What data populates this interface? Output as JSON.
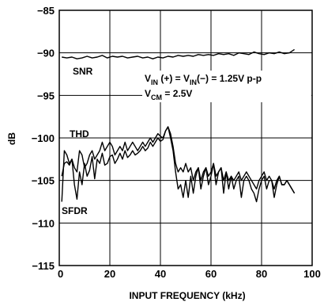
{
  "chart_data": {
    "type": "line",
    "xlabel": "INPUT FREQUENCY (kHz)",
    "ylabel": "dB",
    "xlim": [
      0,
      100
    ],
    "ylim": [
      -115,
      -85
    ],
    "xticks": [
      "0",
      "20",
      "40",
      "60",
      "80",
      "100"
    ],
    "yticks": [
      "−85",
      "−90",
      "−95",
      "−100",
      "−105",
      "−110",
      "−115"
    ],
    "grid": true,
    "legend": "none",
    "annotations": {
      "condition_vin": {
        "main": "V",
        "sub1": "IN",
        "mid": " (+) = V",
        "sub2": "IN",
        "tail": "(−) = 1.25V p-p"
      },
      "condition_vcm": {
        "main": "V",
        "sub": "CM",
        "tail": " = 2.5V"
      }
    },
    "series": [
      {
        "name": "SNR",
        "x": [
          1,
          3,
          5,
          7,
          9,
          11,
          13,
          15,
          17,
          19,
          21,
          23,
          25,
          27,
          29,
          31,
          33,
          35,
          37,
          39,
          41,
          43,
          45,
          47,
          49,
          51,
          53,
          55,
          57,
          59,
          61,
          63,
          65,
          67,
          69,
          71,
          73,
          75,
          77,
          79,
          81,
          83,
          85,
          87,
          89,
          91,
          93
        ],
        "y": [
          -90.5,
          -90.6,
          -90.5,
          -90.7,
          -90.6,
          -90.4,
          -90.6,
          -90.5,
          -90.3,
          -90.6,
          -90.4,
          -90.5,
          -90.4,
          -90.6,
          -90.5,
          -90.4,
          -90.6,
          -90.5,
          -90.7,
          -90.5,
          -90.6,
          -90.4,
          -90.5,
          -90.3,
          -90.4,
          -90.3,
          -90.4,
          -90.2,
          -90.3,
          -90.2,
          -90.3,
          -90.1,
          -90.2,
          -90.1,
          -90.3,
          -90.0,
          -90.1,
          -90.2,
          -89.9,
          -90.1,
          -90.2,
          -90.0,
          -90.1,
          -89.9,
          -90.1,
          -90.0,
          -89.6
        ]
      },
      {
        "name": "THD",
        "x": [
          1,
          2,
          3,
          4,
          5,
          6,
          7,
          8,
          9,
          10,
          11,
          12,
          13,
          14,
          15,
          16,
          17,
          18,
          19,
          20,
          21,
          22,
          23,
          24,
          25,
          26,
          27,
          28,
          29,
          30,
          31,
          32,
          33,
          34,
          35,
          36,
          37,
          38,
          39,
          40,
          41,
          42,
          43,
          44,
          45,
          46,
          47,
          48,
          49,
          50,
          51,
          52,
          53,
          54,
          55,
          56,
          57,
          58,
          59,
          60,
          61,
          62,
          63,
          64,
          65,
          66,
          67,
          68,
          69,
          70,
          71,
          72,
          73,
          74,
          75,
          76,
          77,
          78,
          79,
          80,
          81,
          82,
          83,
          84,
          85,
          86,
          87,
          88,
          89,
          90,
          91,
          92,
          93
        ],
        "y": [
          -107.5,
          -101.5,
          -102,
          -103,
          -102.5,
          -103.5,
          -104,
          -101.5,
          -102,
          -103.5,
          -103,
          -102,
          -101.5,
          -102.5,
          -102,
          -101.5,
          -100.5,
          -101.5,
          -101,
          -100.5,
          -101,
          -102,
          -101.5,
          -101,
          -101.5,
          -100.5,
          -101.5,
          -101,
          -100.5,
          -101,
          -101.5,
          -101,
          -100.5,
          -101,
          -100.5,
          -100,
          -100.5,
          -100,
          -99.5,
          -99.8,
          -100,
          -99.2,
          -98.7,
          -99.5,
          -101,
          -103,
          -104,
          -103.5,
          -104,
          -103,
          -104,
          -103.5,
          -105,
          -104,
          -103.5,
          -105,
          -104,
          -103.5,
          -104.5,
          -104,
          -103,
          -104.5,
          -104,
          -103.5,
          -105,
          -104,
          -105,
          -104.5,
          -105,
          -104.5,
          -104,
          -105,
          -104.5,
          -104,
          -104.5,
          -105,
          -105.5,
          -106,
          -105,
          -104.5,
          -104,
          -105,
          -104.5,
          -105,
          -106,
          -105,
          -104.5,
          -105.5,
          -105.5,
          -105,
          -105.5,
          -106,
          -106.5
        ]
      },
      {
        "name": "SFDR",
        "x": [
          1,
          2,
          3,
          4,
          5,
          6,
          7,
          8,
          9,
          10,
          11,
          12,
          13,
          14,
          15,
          16,
          17,
          18,
          19,
          20,
          21,
          22,
          23,
          24,
          25,
          26,
          27,
          28,
          29,
          30,
          31,
          32,
          33,
          34,
          35,
          36,
          37,
          38,
          39,
          40,
          41,
          42,
          43,
          44,
          45,
          46,
          47,
          48,
          49,
          50,
          51,
          52,
          53,
          54,
          55,
          56,
          57,
          58,
          59,
          60,
          61,
          62,
          63,
          64,
          65,
          66,
          67,
          68,
          69,
          70,
          71,
          72,
          73,
          74,
          75,
          76,
          77,
          78,
          79,
          80,
          81,
          82,
          83,
          84,
          85,
          86,
          87,
          88,
          89,
          90,
          91,
          92,
          93
        ],
        "y": [
          -104.5,
          -103,
          -102.8,
          -103.2,
          -102.5,
          -105.5,
          -107.2,
          -104,
          -105.5,
          -103,
          -104.5,
          -103.8,
          -102.2,
          -104.8,
          -102.5,
          -103,
          -101.8,
          -103.2,
          -103,
          -102.2,
          -102,
          -103,
          -102.5,
          -101.8,
          -102.5,
          -101.5,
          -102.3,
          -102,
          -101.5,
          -102,
          -101.8,
          -101.5,
          -101,
          -101.5,
          -101.2,
          -100.5,
          -101,
          -100.5,
          -100,
          -100.4,
          -100.2,
          -99.2,
          -98.7,
          -100,
          -101.5,
          -104,
          -106,
          -105.5,
          -107,
          -105,
          -107,
          -104.5,
          -106.5,
          -104.5,
          -103.5,
          -106,
          -104.5,
          -103.5,
          -105.5,
          -104.5,
          -103,
          -105.5,
          -104,
          -103.5,
          -106.5,
          -104,
          -106,
          -104.5,
          -106,
          -105,
          -104.5,
          -107,
          -105,
          -104.5,
          -105,
          -106,
          -106.5,
          -107.5,
          -106,
          -105,
          -104.5,
          -106,
          -105,
          -105,
          -107,
          -105.5,
          -104.5,
          -105.5,
          -105.5,
          -105,
          -105.5,
          -106,
          -106.5
        ]
      }
    ]
  }
}
